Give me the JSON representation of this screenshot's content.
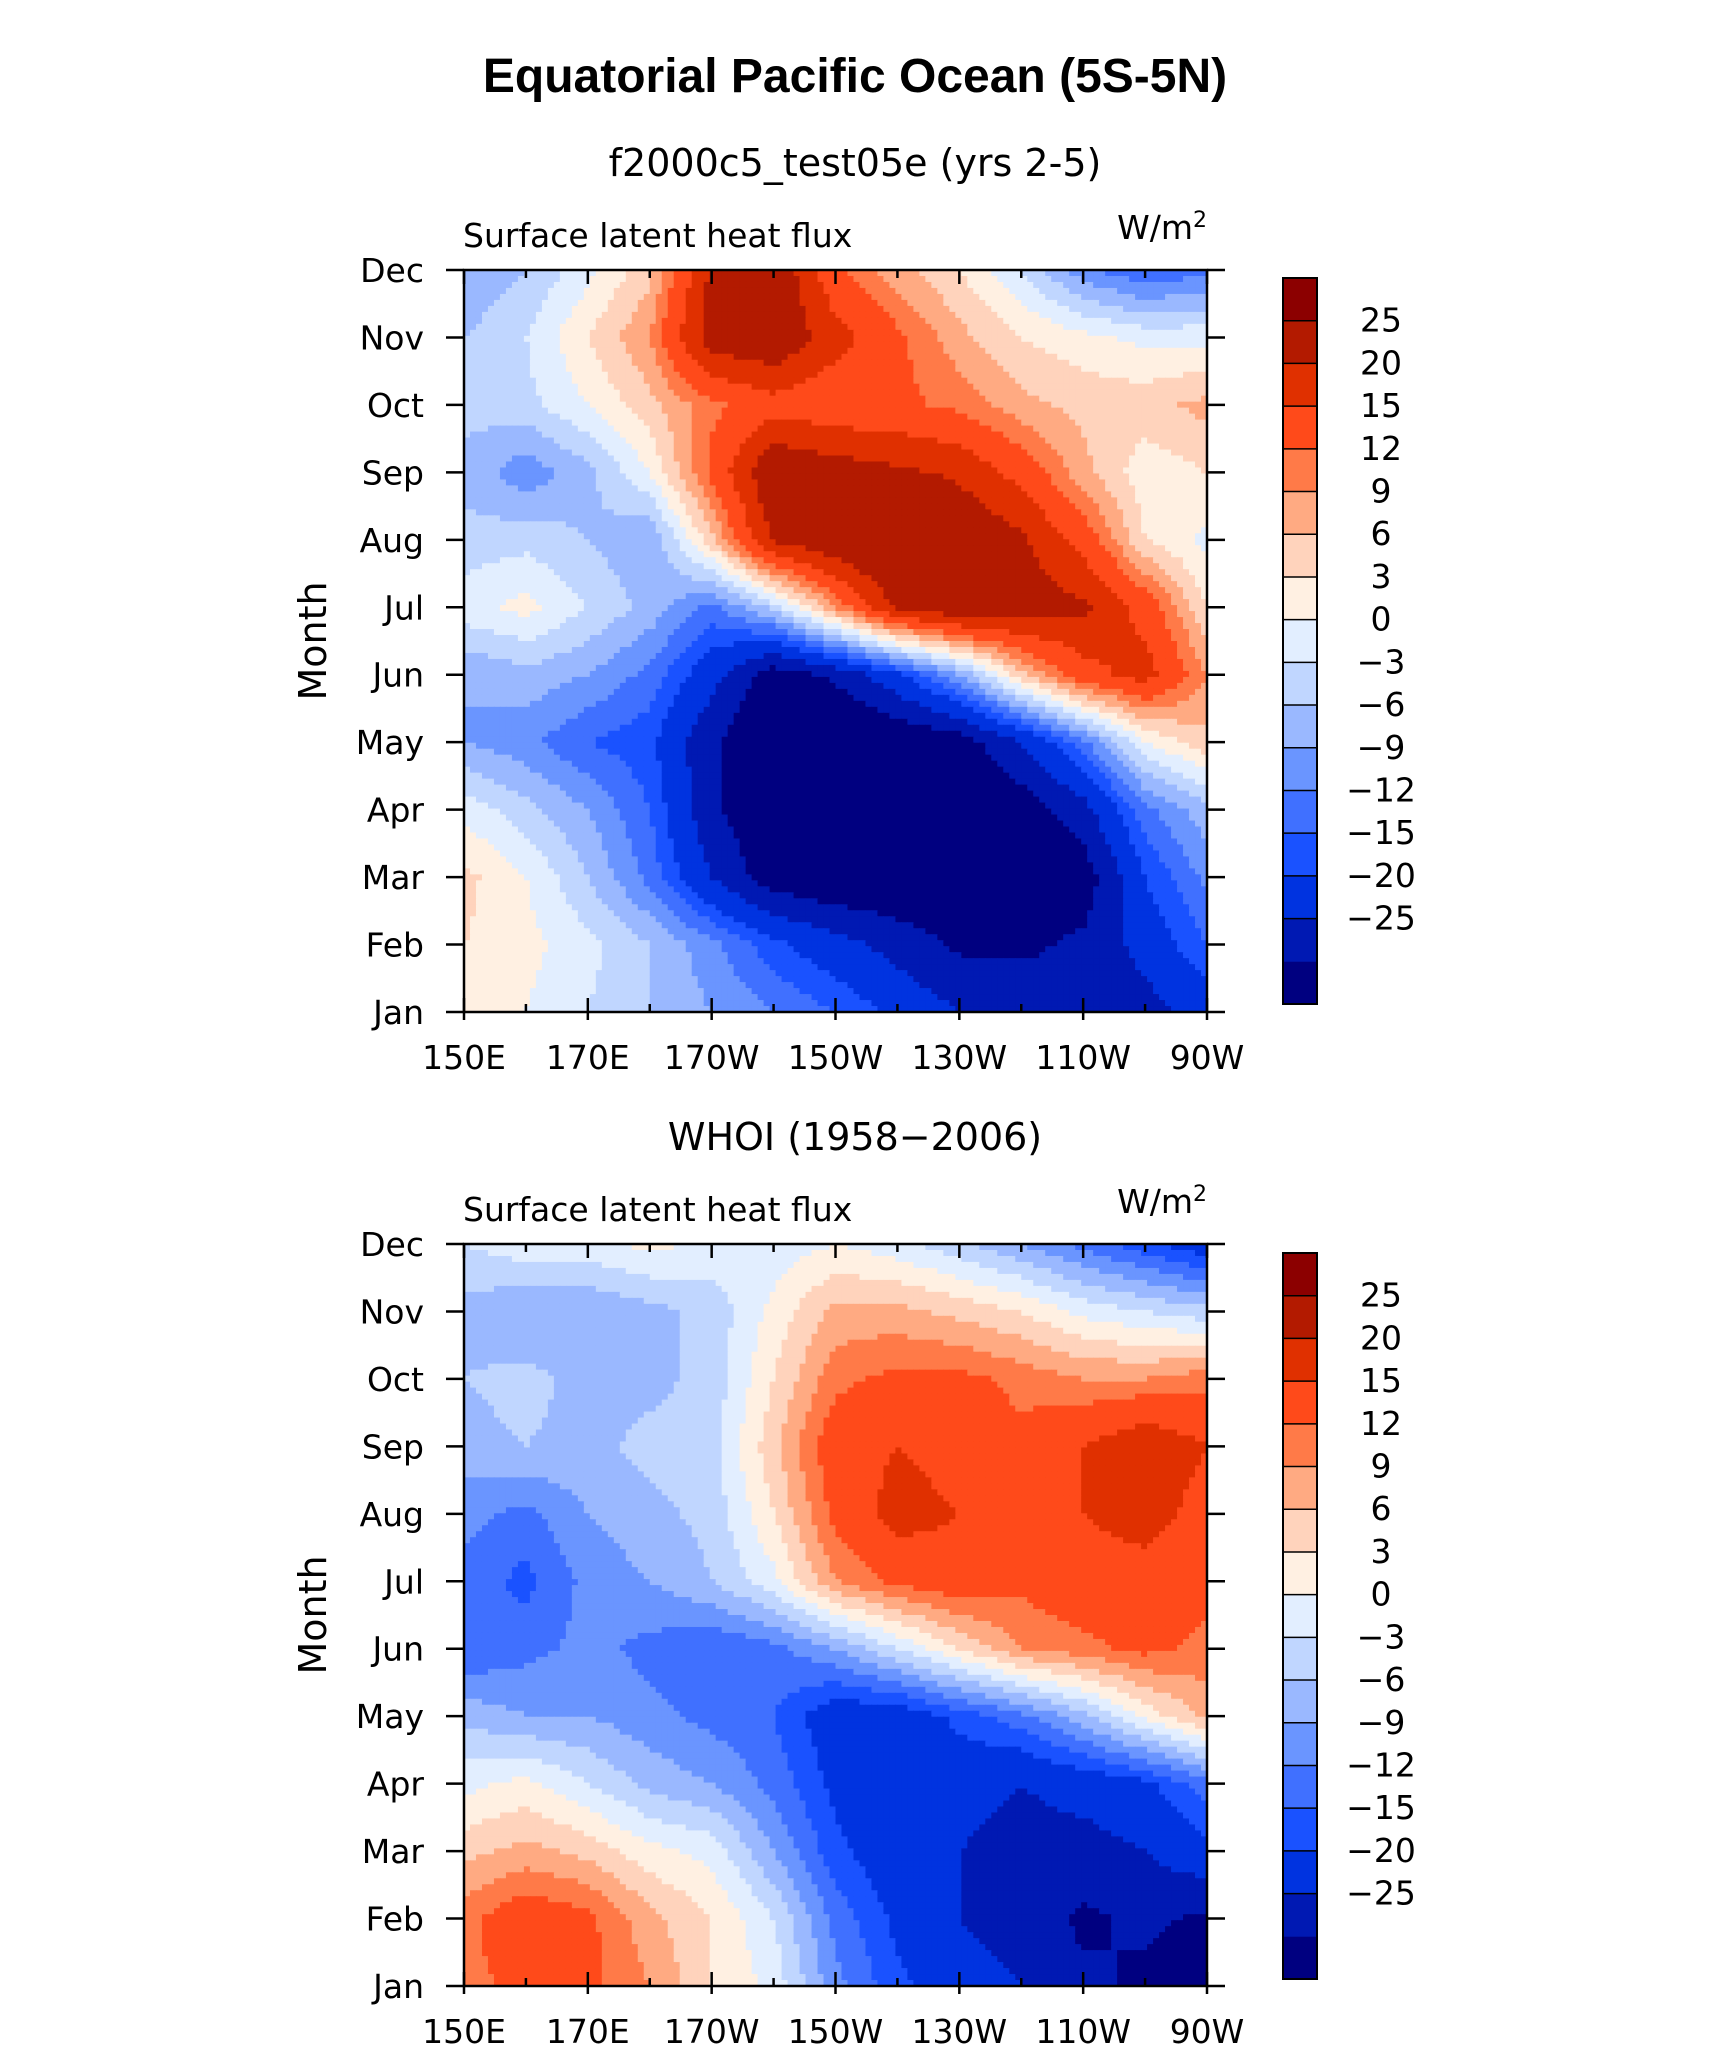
{
  "title": "Equatorial Pacific Ocean (5S-5N)",
  "levels": [
    -25,
    -20,
    -15,
    -12,
    -9,
    -6,
    -3,
    0,
    3,
    6,
    9,
    12,
    15,
    20,
    25
  ],
  "colors": [
    "#000080",
    "#0019b3",
    "#0033e0",
    "#1a52ff",
    "#4070ff",
    "#6a95ff",
    "#9ab8ff",
    "#c0d6ff",
    "#e2eeff",
    "#fff0e2",
    "#ffd3bc",
    "#ffaa82",
    "#ff7a48",
    "#ff4a1a",
    "#e03000",
    "#b31a00",
    "#8c0000"
  ],
  "chart_data": [
    {
      "type": "heatmap",
      "subtitle": "f2000c5_test05e (yrs 2-5)",
      "left_label": "Surface latent heat flux",
      "right_label": "W/m",
      "right_label_sup": "2",
      "ylabel": "Month",
      "x_ticks": [
        "150E",
        "170E",
        "170W",
        "150W",
        "130W",
        "110W",
        "90W"
      ],
      "y_ticks": [
        "Jan",
        "Feb",
        "Mar",
        "Apr",
        "May",
        "Jun",
        "Jul",
        "Aug",
        "Sep",
        "Oct",
        "Nov",
        "Dec"
      ],
      "colorbar_labels": [
        "25",
        "20",
        "15",
        "12",
        "9",
        "6",
        "3",
        "0",
        "−3",
        "−6",
        "−9",
        "−12",
        "−15",
        "−20",
        "−25"
      ],
      "xlim": [
        150,
        270
      ],
      "x": [
        150,
        160,
        170,
        180,
        190,
        200,
        210,
        220,
        230,
        240,
        250,
        260,
        270
      ],
      "z": [
        [
          5,
          3,
          0,
          -3,
          -6,
          -9,
          -12,
          -16,
          -20,
          -22,
          -24,
          -22,
          -18
        ],
        [
          6,
          4,
          1,
          -3,
          -8,
          -14,
          -18,
          -22,
          -26,
          -26,
          -24,
          -18,
          -12
        ],
        [
          7,
          3,
          -3,
          -10,
          -20,
          -28,
          -30,
          -30,
          -30,
          -30,
          -28,
          -15,
          -8
        ],
        [
          2,
          -2,
          -6,
          -12,
          -24,
          -30,
          -32,
          -32,
          -30,
          -28,
          -22,
          -10,
          -4
        ],
        [
          -6,
          -8,
          -12,
          -14,
          -24,
          -32,
          -32,
          -30,
          -28,
          -20,
          -10,
          3,
          8
        ],
        [
          -6,
          -4,
          -6,
          -10,
          -18,
          -28,
          -24,
          -16,
          -6,
          8,
          18,
          22,
          12
        ],
        [
          2,
          4,
          0,
          -4,
          -10,
          -2,
          12,
          26,
          30,
          28,
          26,
          18,
          6
        ],
        [
          -2,
          -1,
          -3,
          -6,
          8,
          26,
          30,
          34,
          30,
          26,
          18,
          6,
          2
        ],
        [
          -4,
          -8,
          -4,
          3,
          16,
          30,
          28,
          26,
          24,
          18,
          10,
          4,
          6
        ],
        [
          -2,
          -1,
          3,
          8,
          14,
          18,
          16,
          16,
          14,
          10,
          8,
          8,
          10
        ],
        [
          -3,
          0,
          6,
          12,
          28,
          30,
          22,
          16,
          10,
          6,
          4,
          2,
          2
        ],
        [
          -6,
          -3,
          2,
          8,
          26,
          30,
          16,
          10,
          6,
          0,
          -8,
          -12,
          -10
        ]
      ]
    },
    {
      "type": "heatmap",
      "subtitle": "WHOI (1958−2006)",
      "left_label": "Surface latent heat flux",
      "right_label": "W/m",
      "right_label_sup": "2",
      "ylabel": "Month",
      "x_ticks": [
        "150E",
        "170E",
        "170W",
        "150W",
        "130W",
        "110W",
        "90W"
      ],
      "y_ticks": [
        "Jan",
        "Feb",
        "Mar",
        "Apr",
        "May",
        "Jun",
        "Jul",
        "Aug",
        "Sep",
        "Oct",
        "Nov",
        "Dec"
      ],
      "colorbar_labels": [
        "25",
        "20",
        "15",
        "12",
        "9",
        "6",
        "3",
        "0",
        "−3",
        "−6",
        "−9",
        "−12",
        "−15",
        "−20",
        "−25"
      ],
      "xlim": [
        150,
        270
      ],
      "x": [
        150,
        160,
        170,
        180,
        190,
        200,
        210,
        220,
        230,
        240,
        250,
        260,
        270
      ],
      "z": [
        [
          14,
          16,
          16,
          12,
          6,
          2,
          -8,
          -14,
          -18,
          -20,
          -24,
          -26,
          -28
        ],
        [
          14,
          18,
          16,
          10,
          6,
          0,
          -10,
          -16,
          -20,
          -22,
          -26,
          -24,
          -26
        ],
        [
          8,
          10,
          8,
          4,
          2,
          -6,
          -14,
          -18,
          -20,
          -22,
          -22,
          -20,
          -16
        ],
        [
          2,
          4,
          0,
          -4,
          -6,
          -10,
          -16,
          -20,
          -18,
          -20,
          -18,
          -16,
          -10
        ],
        [
          -4,
          -6,
          -6,
          -8,
          -10,
          -12,
          -18,
          -18,
          -14,
          -10,
          -4,
          4,
          10
        ],
        [
          -12,
          -10,
          -8,
          -10,
          -12,
          -10,
          -6,
          0,
          6,
          12,
          14,
          16,
          14
        ],
        [
          -10,
          -13,
          -8,
          -6,
          -3,
          2,
          12,
          16,
          18,
          16,
          18,
          18,
          16
        ],
        [
          -8,
          -10,
          -6,
          -4,
          -2,
          6,
          16,
          22,
          20,
          18,
          20,
          22,
          18
        ],
        [
          -4,
          -3,
          -4,
          -2,
          -1,
          8,
          18,
          20,
          18,
          16,
          20,
          24,
          20
        ],
        [
          -3,
          -2,
          -4,
          -4,
          -2,
          6,
          14,
          16,
          16,
          14,
          12,
          12,
          14
        ],
        [
          -4,
          -6,
          -6,
          -4,
          -2,
          4,
          10,
          10,
          8,
          6,
          2,
          0,
          -2
        ],
        [
          0,
          2,
          2,
          4,
          2,
          1,
          3,
          1,
          -2,
          -6,
          -10,
          -14,
          -18
        ]
      ]
    }
  ]
}
